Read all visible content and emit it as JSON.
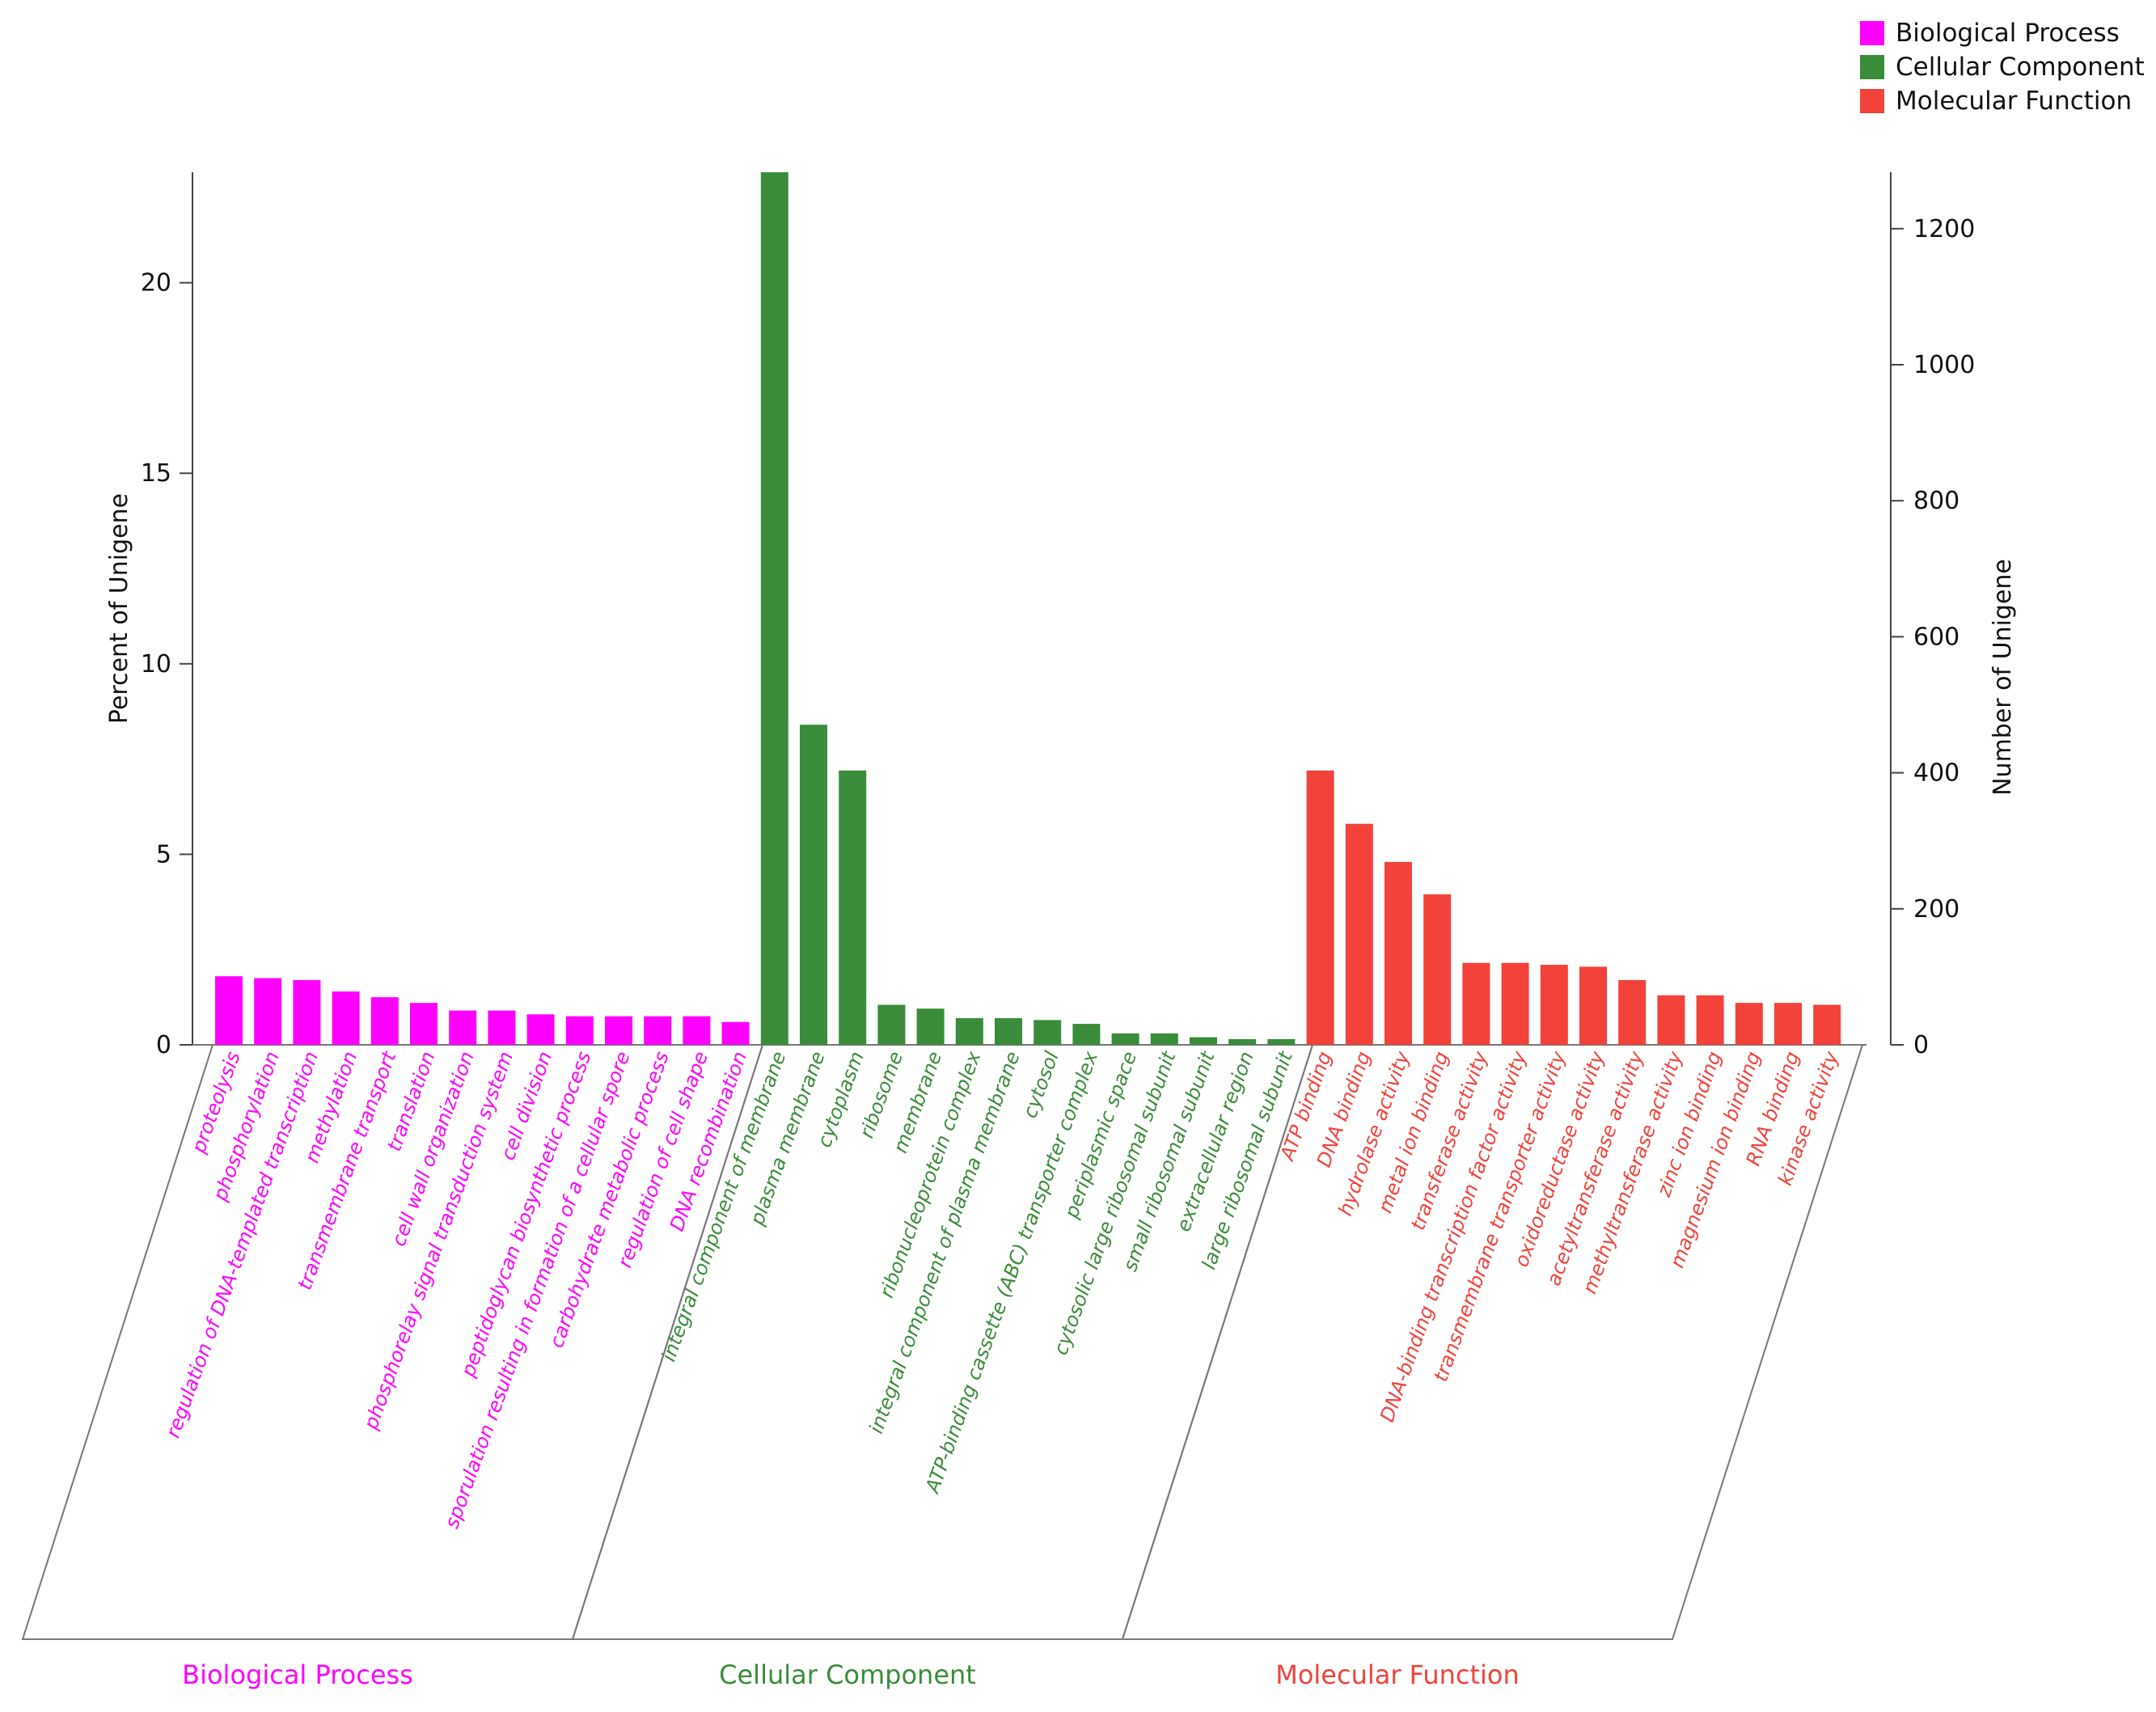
{
  "legend": {
    "items": [
      {
        "label": "Biological Process",
        "color": "#ff00ff"
      },
      {
        "label": "Cellular Component",
        "color": "#3a8c3a"
      },
      {
        "label": "Molecular Function",
        "color": "#f2423a"
      }
    ]
  },
  "chart_data": {
    "type": "bar",
    "title": "",
    "ylabel": "Percent of Unigene",
    "y2label": "Number of Unigene",
    "ylim": [
      0,
      22.9
    ],
    "y2lim": [
      0,
      1283
    ],
    "yticks": [
      0,
      5,
      10,
      15,
      20
    ],
    "y2ticks": [
      0,
      200,
      400,
      600,
      800,
      1000,
      1200
    ],
    "grid": false,
    "legend_position": "top-right",
    "groups": [
      {
        "name": "Biological Process",
        "label": "Biological Process",
        "color": "#ff00ff",
        "categories": [
          "proteolysis",
          "phosphorylation",
          "regulation of DNA-templated transcription",
          "methylation",
          "transmembrane transport",
          "translation",
          "cell wall organization",
          "phosphorelay signal transduction system",
          "cell division",
          "peptidoglycan biosynthetic process",
          "sporulation resulting in formation of a cellular spore",
          "carbohydrate metabolic process",
          "regulation of cell shape",
          "DNA recombination"
        ],
        "values": [
          1.8,
          1.75,
          1.7,
          1.4,
          1.25,
          1.1,
          0.9,
          0.9,
          0.8,
          0.75,
          0.75,
          0.75,
          0.75,
          0.6
        ]
      },
      {
        "name": "Cellular Component",
        "label": "Cellular Component",
        "color": "#3a8c3a",
        "categories": [
          "integral component of membrane",
          "plasma membrane",
          "cytoplasm",
          "ribosome",
          "membrane",
          "ribonucleoprotein complex",
          "integral component of plasma membrane",
          "cytosol",
          "ATP-binding cassette (ABC) transporter complex",
          "periplasmic space",
          "cytosolic large ribosomal subunit",
          "small ribosomal subunit",
          "extracellular region",
          "large ribosomal subunit"
        ],
        "values": [
          22.9,
          8.4,
          7.2,
          1.05,
          0.95,
          0.7,
          0.7,
          0.65,
          0.55,
          0.3,
          0.3,
          0.2,
          0.15,
          0.15
        ]
      },
      {
        "name": "Molecular Function",
        "label": "Molecular Function",
        "color": "#f2423a",
        "categories": [
          "ATP binding",
          "DNA binding",
          "hydrolase activity",
          "metal ion binding",
          "transferase activity",
          "DNA-binding transcription factor activity",
          "transmembrane transporter activity",
          "oxidoreductase activity",
          "acetyltransferase activity",
          "methyltransferase activity",
          "zinc ion binding",
          "magnesium ion binding",
          "RNA binding",
          "kinase activity"
        ],
        "values": [
          7.2,
          5.8,
          4.8,
          3.95,
          2.15,
          2.15,
          2.1,
          2.05,
          1.7,
          1.3,
          1.3,
          1.1,
          1.1,
          1.05
        ]
      }
    ]
  }
}
